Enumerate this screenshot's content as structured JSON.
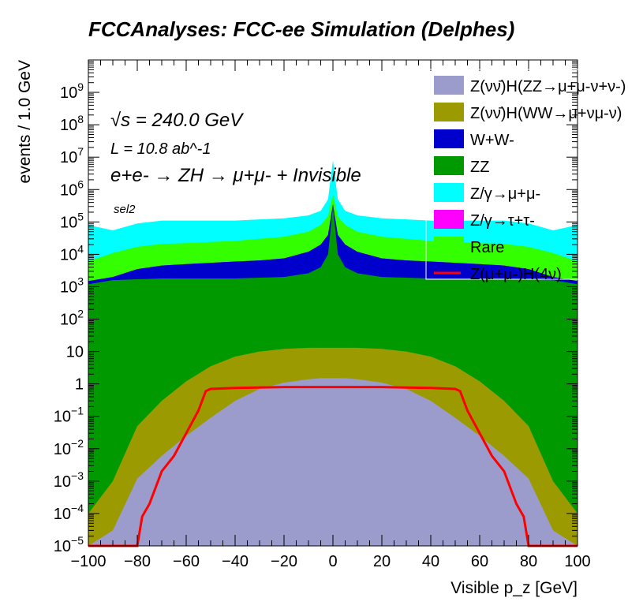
{
  "chart_data": {
    "type": "area",
    "title": "FCCAnalyses: FCC-ee Simulation (Delphes)",
    "xlabel": "Visible p_z [GeV]",
    "ylabel": "events / 1.0 GeV",
    "xlim": [
      -100,
      100
    ],
    "ylim": [
      1e-05,
      10000000000.0
    ],
    "log_y": true,
    "stacked": true,
    "grid": false,
    "legend_position": "top-right",
    "x_ticks": [
      "-100",
      "-80",
      "-60",
      "-40",
      "-20",
      "0",
      "20",
      "40",
      "60",
      "80",
      "100"
    ],
    "y_ticks": [
      "10^-5",
      "10^-4",
      "10^-3",
      "10^-2",
      "10^-1",
      "1",
      "10",
      "10^2",
      "10^3",
      "10^4",
      "10^5",
      "10^6",
      "10^7",
      "10^8",
      "10^9"
    ],
    "annotations": {
      "sqrt_s": "√s = 240.0 GeV",
      "lumi": "L = 10.8 ab^-1",
      "process": "e+e- → ZH → μ+μ- + Invisible",
      "selection": "sel2"
    },
    "x": [
      -100,
      -90,
      -80,
      -70,
      -60,
      -50,
      -40,
      -30,
      -20,
      -10,
      -5,
      -2,
      0,
      2,
      5,
      10,
      20,
      30,
      40,
      50,
      60,
      70,
      80,
      90,
      100
    ],
    "series": [
      {
        "name": "Z(νν̄)H(ZZ→μ+μ-ν+ν-)",
        "color": "#9b9ccc",
        "stack_top": [
          1e-05,
          3e-05,
          0.0012,
          0.006,
          0.025,
          0.09,
          0.3,
          0.7,
          1.1,
          1.4,
          1.5,
          1.5,
          1.5,
          1.5,
          1.5,
          1.4,
          1.1,
          0.7,
          0.3,
          0.09,
          0.025,
          0.006,
          0.0012,
          3e-05,
          1e-05
        ]
      },
      {
        "name": "Z(νν̄)H(WW→μ+νμ-ν)",
        "color": "#9b9a00",
        "stack_top": [
          0.0001,
          0.001,
          0.05,
          0.3,
          1.2,
          3.5,
          7,
          10,
          12,
          13,
          13,
          13,
          13,
          13,
          13,
          13,
          12,
          10,
          7,
          3.5,
          1.2,
          0.3,
          0.05,
          0.001,
          0.0001
        ]
      },
      {
        "name": "ZZ",
        "color": "#009900",
        "stack_top": [
          1200,
          1600,
          1700,
          1800,
          1800,
          1800,
          1800,
          1900,
          2000,
          2600,
          4000,
          10000,
          300000,
          10000,
          4000,
          2600,
          2000,
          1900,
          1800,
          1800,
          1800,
          1800,
          1700,
          1600,
          1200
        ]
      },
      {
        "name": "W+W-",
        "color": "#0000cc",
        "stack_top": [
          1500,
          2000,
          3500,
          4500,
          5000,
          5500,
          6000,
          6500,
          7500,
          12000,
          20000,
          40000,
          350000,
          40000,
          20000,
          12000,
          7500,
          6500,
          6000,
          5500,
          5000,
          4500,
          3500,
          2000,
          1500
        ]
      },
      {
        "name": "Z/γ→τ+τ-",
        "color": "#ff00ff",
        "stack_top": [
          1500,
          2000,
          3500,
          4500,
          5000,
          5500,
          6000,
          6500,
          7500,
          12000,
          20000,
          40000,
          350000,
          40000,
          20000,
          12000,
          7500,
          6500,
          6000,
          5500,
          5000,
          4500,
          3500,
          2000,
          1500
        ]
      },
      {
        "name": "Rare",
        "color": "#33ff00",
        "stack_top": [
          6000,
          11000,
          17000,
          21000,
          22000,
          24000,
          26000,
          30000,
          35000,
          50000,
          80000,
          150000,
          700000,
          150000,
          80000,
          50000,
          35000,
          30000,
          26000,
          24000,
          22000,
          21000,
          17000,
          11000,
          6000
        ]
      },
      {
        "name": "Z/γ→μ+μ-",
        "color": "#00ffff",
        "stack_top": [
          80000,
          55000,
          90000,
          110000,
          110000,
          110000,
          110000,
          120000,
          130000,
          160000,
          220000,
          500000,
          8000000,
          500000,
          220000,
          160000,
          130000,
          120000,
          110000,
          110000,
          110000,
          110000,
          90000,
          55000,
          80000
        ]
      }
    ],
    "signal": {
      "name": "Z(μ+μ-)H(4ν)",
      "color": "#ff0000",
      "x": [
        -100,
        -80,
        -78,
        -75,
        -70,
        -65,
        -60,
        -55,
        -52,
        -50,
        -40,
        -20,
        0,
        20,
        40,
        50,
        52,
        55,
        60,
        65,
        70,
        75,
        78,
        80,
        100
      ],
      "values": [
        1e-05,
        1e-05,
        8e-05,
        0.0002,
        0.002,
        0.006,
        0.03,
        0.15,
        0.6,
        0.7,
        0.75,
        0.8,
        0.8,
        0.8,
        0.75,
        0.7,
        0.6,
        0.15,
        0.03,
        0.006,
        0.002,
        0.0002,
        8e-05,
        1e-05,
        1e-05
      ]
    },
    "legend_entries": [
      "Z(νν̄)H(ZZ→μ+μ-ν+ν-)",
      "Z(νν̄)H(WW→μ+νμ-ν)",
      "W+W-",
      "ZZ",
      "Z/γ→μ+μ-",
      "Z/γ→τ+τ-",
      "Rare",
      "Z(μ+μ-)H(4ν)"
    ]
  }
}
